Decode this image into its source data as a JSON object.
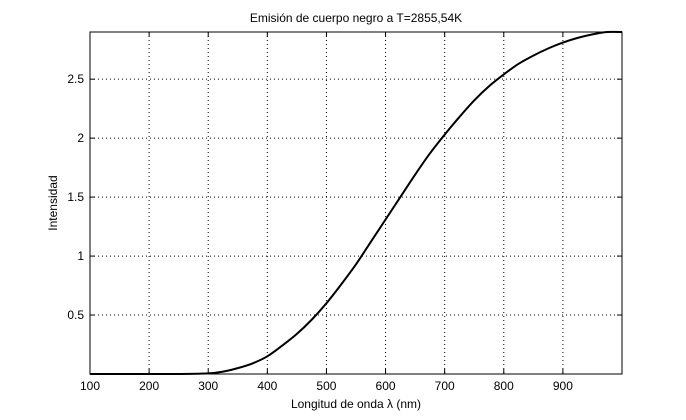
{
  "chart_data": {
    "type": "line",
    "title": "Emisión de cuerpo negro a T=2855,54K",
    "xlabel": "Longitud de onda λ (nm)",
    "ylabel": "Intensidad",
    "xlim": [
      100,
      1000
    ],
    "ylim": [
      0,
      2.9
    ],
    "x_ticks": [
      100,
      200,
      300,
      400,
      500,
      600,
      700,
      800,
      900
    ],
    "x_tick_labels": [
      "100",
      "200",
      "300",
      "400",
      "500",
      "600",
      "700",
      "800",
      "900"
    ],
    "y_ticks": [
      0.5,
      1,
      1.5,
      2,
      2.5
    ],
    "y_tick_labels": [
      "0.5",
      "1",
      "1.5",
      "2",
      "2.5"
    ],
    "grid": true,
    "colors": {
      "line": "#000000",
      "grid": "#000000",
      "axes": "#000000"
    },
    "series": [
      {
        "x": [
          100,
          150,
          200,
          250,
          300,
          325,
          350,
          375,
          400,
          425,
          450,
          475,
          500,
          525,
          550,
          575,
          600,
          625,
          650,
          675,
          700,
          725,
          750,
          775,
          800,
          825,
          850,
          875,
          900,
          925,
          950,
          975,
          1000
        ],
        "y": [
          0.0,
          0.0,
          0.0,
          0.0,
          0.005,
          0.02,
          0.05,
          0.09,
          0.15,
          0.24,
          0.34,
          0.46,
          0.6,
          0.76,
          0.93,
          1.12,
          1.31,
          1.5,
          1.69,
          1.87,
          2.03,
          2.18,
          2.32,
          2.44,
          2.54,
          2.63,
          2.7,
          2.76,
          2.81,
          2.85,
          2.88,
          2.9,
          2.9
        ]
      }
    ]
  }
}
